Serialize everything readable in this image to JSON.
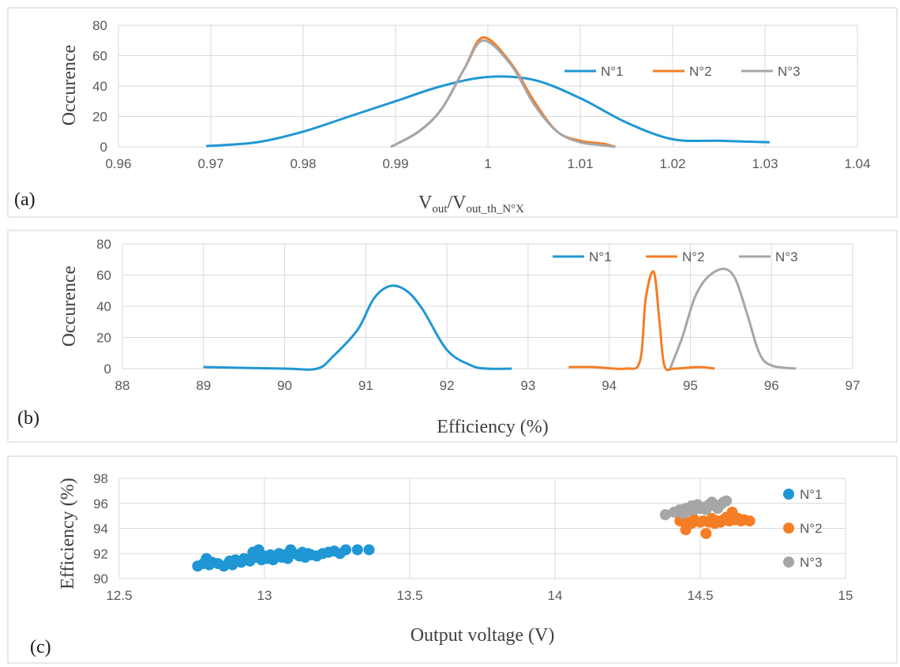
{
  "chart_data": [
    {
      "type": "line",
      "panel_label": "(a)",
      "xlabel_main": "V",
      "xlabel_sub1": "out",
      "xlabel_mid": "/V",
      "xlabel_sub2": "out_th_N°X",
      "ylabel": "Occurence",
      "xlim": [
        0.96,
        1.04
      ],
      "ylim": [
        0,
        80
      ],
      "xticks": [
        "0.96",
        "0.97",
        "0.98",
        "0.99",
        "1",
        "1.01",
        "1.02",
        "1.03",
        "1.04"
      ],
      "xtick_values": [
        0.96,
        0.97,
        0.98,
        0.99,
        1.0,
        1.01,
        1.02,
        1.03,
        1.04
      ],
      "yticks": [
        "0",
        "20",
        "40",
        "60",
        "80"
      ],
      "ytick_values": [
        0,
        20,
        40,
        60,
        80
      ],
      "legend_position": "right",
      "series": [
        {
          "name": "N°1",
          "color": "#1f97d4",
          "x": [
            0.9695,
            0.975,
            0.98,
            0.985,
            0.99,
            0.995,
            1.0,
            1.005,
            1.01,
            1.015,
            1.02,
            1.025,
            1.0305
          ],
          "y": [
            0.5,
            3,
            10,
            20,
            30,
            40,
            46,
            44,
            32,
            16,
            5,
            4,
            3
          ]
        },
        {
          "name": "N°2",
          "color": "#f57d24",
          "x": [
            0.9895,
            0.9925,
            0.995,
            0.9975,
            0.9995,
            1.0025,
            1.005,
            1.0075,
            1.01,
            1.0125,
            1.0138
          ],
          "y": [
            0,
            10,
            25,
            52,
            72,
            55,
            30,
            10,
            4,
            2,
            0
          ]
        },
        {
          "name": "N°3",
          "color": "#a6a6a6",
          "x": [
            0.9895,
            0.9925,
            0.995,
            0.9975,
            0.9995,
            1.0025,
            1.005,
            1.0075,
            1.01,
            1.0125,
            1.0138
          ],
          "y": [
            0,
            10,
            25,
            52,
            70,
            54,
            28,
            10,
            3,
            1,
            0
          ]
        }
      ]
    },
    {
      "type": "line",
      "panel_label": "(b)",
      "xlabel": "Efficiency (%)",
      "ylabel": "Occurence",
      "xlim": [
        88,
        97
      ],
      "ylim": [
        0,
        80
      ],
      "xticks": [
        "88",
        "89",
        "90",
        "91",
        "92",
        "93",
        "94",
        "95",
        "96",
        "97"
      ],
      "xtick_values": [
        88,
        89,
        90,
        91,
        92,
        93,
        94,
        95,
        96,
        97
      ],
      "yticks": [
        "0",
        "20",
        "40",
        "60",
        "80"
      ],
      "ytick_values": [
        0,
        20,
        40,
        60,
        80
      ],
      "legend_position": "top-right",
      "series": [
        {
          "name": "N°1",
          "color": "#1f97d4",
          "x": [
            89,
            90,
            90.4,
            90.6,
            90.9,
            91.1,
            91.3,
            91.5,
            91.7,
            92.0,
            92.3,
            92.5,
            92.8
          ],
          "y": [
            1,
            0,
            0,
            8,
            25,
            45,
            53,
            50,
            38,
            12,
            2,
            0,
            0
          ]
        },
        {
          "name": "N°2",
          "color": "#f57d24",
          "x": [
            93.5,
            93.8,
            94.2,
            94.38,
            94.45,
            94.55,
            94.62,
            94.68,
            94.8,
            95.1,
            95.3
          ],
          "y": [
            1,
            1,
            0,
            5,
            45,
            62,
            30,
            2,
            0,
            1,
            0
          ]
        },
        {
          "name": "N°3",
          "color": "#a6a6a6",
          "x": [
            94.75,
            94.9,
            95.05,
            95.2,
            95.4,
            95.55,
            95.7,
            95.85,
            96.0,
            96.3
          ],
          "y": [
            0,
            20,
            45,
            58,
            64,
            58,
            35,
            10,
            2,
            0
          ]
        }
      ]
    },
    {
      "type": "scatter",
      "panel_label": "(c)",
      "xlabel": "Output voltage (V)",
      "ylabel": "Efficiency (%)",
      "xlim": [
        12.5,
        15
      ],
      "ylim": [
        90,
        98
      ],
      "xticks": [
        "12.5",
        "13",
        "13.5",
        "14",
        "14.5",
        "15"
      ],
      "xtick_values": [
        12.5,
        13,
        13.5,
        14,
        14.5,
        15
      ],
      "yticks": [
        "90",
        "92",
        "94",
        "96",
        "98"
      ],
      "ytick_values": [
        90,
        92,
        94,
        96,
        98
      ],
      "legend_position": "right",
      "series": [
        {
          "name": "N°1",
          "color": "#1f97d4",
          "x": [
            12.77,
            12.79,
            12.8,
            12.81,
            12.82,
            12.84,
            12.86,
            12.88,
            12.89,
            12.9,
            12.92,
            12.93,
            12.95,
            12.96,
            12.97,
            12.98,
            12.99,
            13.0,
            13.01,
            13.02,
            13.03,
            13.05,
            13.06,
            13.07,
            13.08,
            13.09,
            13.1,
            13.12,
            13.13,
            13.14,
            13.15,
            13.16,
            13.18,
            13.2,
            13.22,
            13.24,
            13.26,
            13.28,
            13.32,
            13.36
          ],
          "y": [
            91.0,
            91.2,
            91.6,
            91.1,
            91.3,
            91.2,
            91.0,
            91.4,
            91.1,
            91.5,
            91.3,
            91.6,
            91.4,
            92.1,
            91.7,
            92.3,
            91.5,
            91.8,
            91.6,
            91.9,
            91.5,
            92.0,
            91.7,
            91.9,
            91.6,
            92.3,
            92.0,
            91.8,
            92.1,
            91.7,
            92.0,
            91.9,
            91.8,
            92.0,
            92.1,
            92.2,
            92.0,
            92.3,
            92.3,
            92.3
          ]
        },
        {
          "name": "N°2",
          "color": "#f57d24",
          "x": [
            14.43,
            14.45,
            14.46,
            14.47,
            14.48,
            14.5,
            14.51,
            14.52,
            14.53,
            14.54,
            14.55,
            14.56,
            14.57,
            14.58,
            14.59,
            14.6,
            14.61,
            14.62,
            14.63,
            14.64,
            14.65,
            14.67
          ],
          "y": [
            94.6,
            93.9,
            94.5,
            94.4,
            94.7,
            94.5,
            94.6,
            93.6,
            94.5,
            94.8,
            94.4,
            94.6,
            94.5,
            94.7,
            94.9,
            94.6,
            95.3,
            94.7,
            94.8,
            94.6,
            94.7,
            94.6
          ]
        },
        {
          "name": "N°3",
          "color": "#a6a6a6",
          "x": [
            14.38,
            14.41,
            14.43,
            14.44,
            14.45,
            14.46,
            14.47,
            14.48,
            14.49,
            14.5,
            14.51,
            14.52,
            14.53,
            14.54,
            14.55,
            14.56,
            14.57,
            14.58,
            14.59
          ],
          "y": [
            95.1,
            95.3,
            95.5,
            95.2,
            95.6,
            95.4,
            95.8,
            95.5,
            95.9,
            95.6,
            95.7,
            95.5,
            95.9,
            96.1,
            95.8,
            95.6,
            95.9,
            96.1,
            96.2
          ]
        }
      ]
    }
  ]
}
